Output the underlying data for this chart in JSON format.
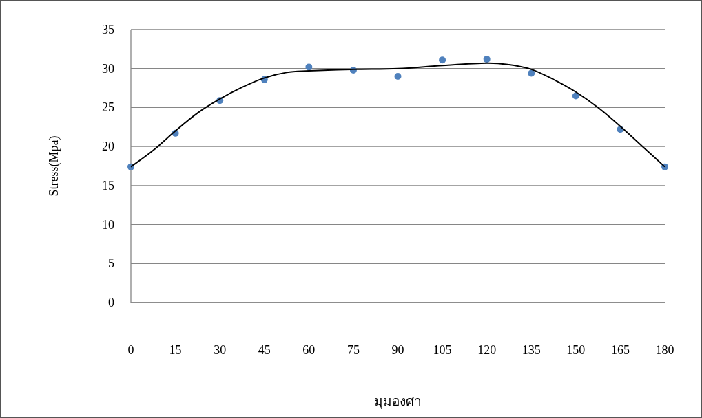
{
  "chart_data": {
    "type": "scatter",
    "xlabel": "มุมองศา",
    "ylabel": "Stress(Mpa)",
    "x": [
      0,
      15,
      30,
      45,
      60,
      75,
      90,
      105,
      120,
      135,
      150,
      165,
      180
    ],
    "series": [
      {
        "type": "scatter",
        "color": "#4f81bd",
        "marker": "circle",
        "values": [
          17.4,
          21.7,
          25.9,
          28.6,
          30.2,
          29.8,
          29.0,
          31.1,
          31.2,
          29.4,
          26.5,
          22.2,
          17.4
        ]
      },
      {
        "type": "line",
        "color": "#000000",
        "marker": "none",
        "x": [
          0,
          7.5,
          15,
          22.5,
          30,
          37.5,
          45,
          52.5,
          60,
          75,
          90,
          105,
          120,
          127.5,
          135,
          142.5,
          150,
          157.5,
          165,
          172.5,
          180
        ],
        "values": [
          17.4,
          19.5,
          22.0,
          24.3,
          26.1,
          27.6,
          28.8,
          29.5,
          29.7,
          29.9,
          30.0,
          30.4,
          30.7,
          30.5,
          29.9,
          28.6,
          27.0,
          25.0,
          22.6,
          20.0,
          17.4
        ]
      }
    ],
    "xlim": [
      0,
      180
    ],
    "xticks": [
      0,
      15,
      30,
      45,
      60,
      75,
      90,
      105,
      120,
      135,
      150,
      165,
      180
    ],
    "ylim": [
      0,
      35
    ],
    "yticks": [
      0,
      5,
      10,
      15,
      20,
      25,
      30,
      35
    ],
    "grid": "y"
  }
}
